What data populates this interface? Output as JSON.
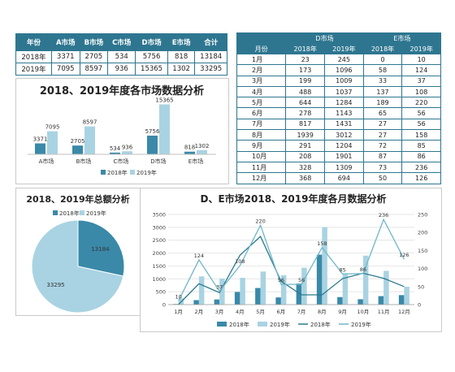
{
  "summary_table": {
    "headers": [
      "年份",
      "A市场",
      "B市场",
      "C市场",
      "D市场",
      "E市场",
      "合计"
    ],
    "rows": [
      [
        "2018年",
        "3371",
        "2705",
        "534",
        "5756",
        "818",
        "13184"
      ],
      [
        "2019年",
        "7095",
        "8597",
        "936",
        "15365",
        "1302",
        "33295"
      ]
    ]
  },
  "monthly_table": {
    "group_headers": [
      "D市场",
      "E市场"
    ],
    "sub_headers": [
      "月份",
      "2018年",
      "2019年",
      "2018年",
      "2019年"
    ],
    "rows": [
      [
        "1月",
        "23",
        "245",
        "0",
        "10"
      ],
      [
        "2月",
        "173",
        "1096",
        "58",
        "124"
      ],
      [
        "3月",
        "199",
        "1009",
        "33",
        "37"
      ],
      [
        "4月",
        "488",
        "1037",
        "137",
        "108"
      ],
      [
        "5月",
        "644",
        "1284",
        "189",
        "220"
      ],
      [
        "6月",
        "278",
        "1143",
        "65",
        "56"
      ],
      [
        "7月",
        "817",
        "1431",
        "27",
        "56"
      ],
      [
        "8月",
        "1939",
        "3012",
        "27",
        "158"
      ],
      [
        "9月",
        "291",
        "1204",
        "72",
        "85"
      ],
      [
        "10月",
        "208",
        "1901",
        "87",
        "86"
      ],
      [
        "11月",
        "328",
        "1309",
        "73",
        "236"
      ],
      [
        "12月",
        "368",
        "694",
        "50",
        "126"
      ]
    ]
  },
  "colors": {
    "c2018": "#3a89a8",
    "c2019": "#a9d3e2",
    "header_bg": "#2e7690"
  },
  "chart_data": [
    {
      "type": "bar",
      "title": "2018、2019年度各市场数据分析",
      "categories": [
        "A市场",
        "B市场",
        "C市场",
        "D市场",
        "E市场"
      ],
      "series": [
        {
          "name": "2018年",
          "values": [
            3371,
            2705,
            534,
            5756,
            818
          ]
        },
        {
          "name": "2019年",
          "values": [
            7095,
            8597,
            936,
            15365,
            1302
          ]
        }
      ],
      "legend": "bottom",
      "grid": false
    },
    {
      "type": "pie",
      "title": "2018、2019年总额分析",
      "labels": [
        "2018年",
        "2019年"
      ],
      "values": [
        13184,
        33295
      ],
      "legend": "top"
    },
    {
      "type": "bar",
      "title": "D、E市场2018、2019年度各月数据分析",
      "categories": [
        "1月",
        "2月",
        "3月",
        "4月",
        "5月",
        "6月",
        "7月",
        "8月",
        "9月",
        "10月",
        "11月",
        "12月"
      ],
      "left_ticks": [
        "0",
        "500",
        "1000",
        "1500",
        "2000",
        "2500",
        "3000",
        "3500"
      ],
      "right_ticks": [
        "0",
        "50",
        "100",
        "150",
        "200",
        "250"
      ],
      "ylim_left": [
        0,
        3500
      ],
      "ylim_right": [
        0,
        250
      ],
      "series": [
        {
          "name": "2018年",
          "kind": "bar",
          "axis": "left",
          "values": [
            23,
            173,
            199,
            488,
            644,
            278,
            817,
            1939,
            291,
            208,
            328,
            368
          ]
        },
        {
          "name": "2019年",
          "kind": "bar",
          "axis": "left",
          "values": [
            245,
            1096,
            1009,
            1037,
            1284,
            1143,
            1431,
            3012,
            1204,
            1901,
            1309,
            694
          ]
        },
        {
          "name": "2018年",
          "kind": "line",
          "axis": "right",
          "values": [
            0,
            58,
            33,
            137,
            189,
            65,
            27,
            27,
            72,
            87,
            73,
            50
          ]
        },
        {
          "name": "2019年",
          "kind": "line",
          "axis": "right",
          "values": [
            10,
            124,
            37,
            108,
            220,
            56,
            56,
            158,
            85,
            86,
            236,
            126
          ]
        }
      ],
      "data_labels": [
        "10",
        "124",
        "37",
        "108",
        "220",
        "56",
        "56",
        "158",
        "85",
        "86",
        "236",
        "126"
      ],
      "legend": "bottom",
      "grid": true
    }
  ]
}
